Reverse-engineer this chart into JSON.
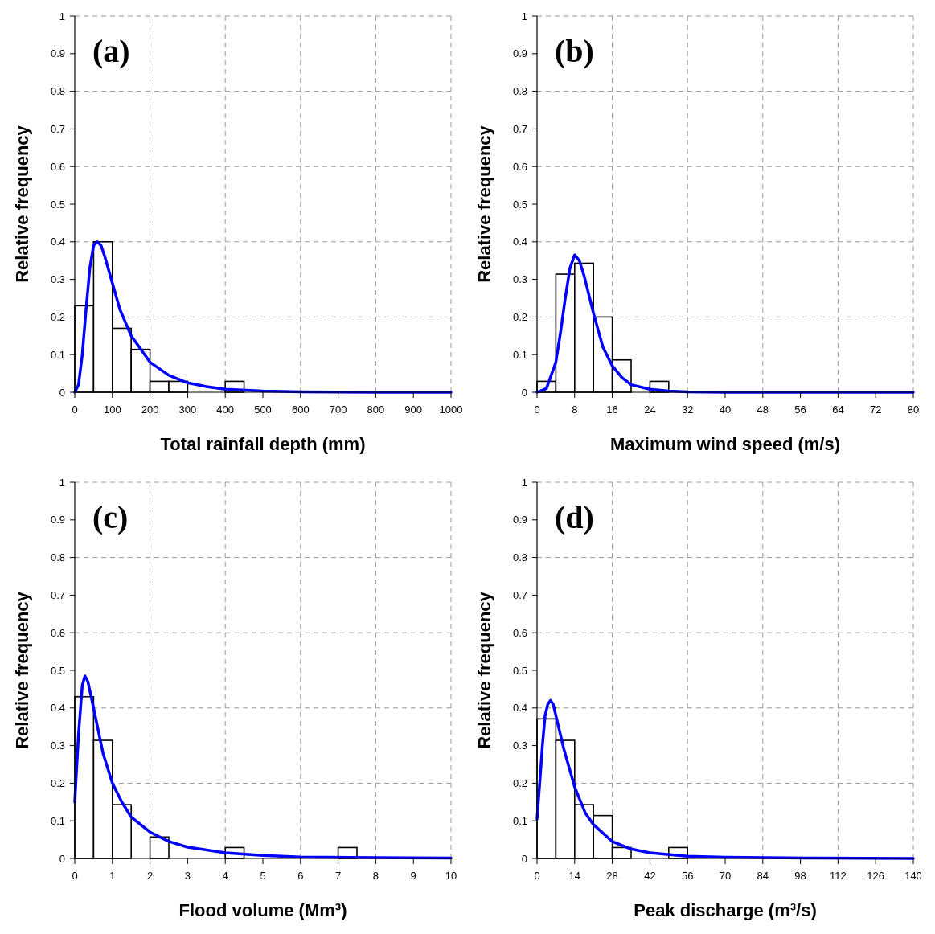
{
  "chart_data": [
    {
      "type": "histogram",
      "title": "(a)",
      "xlabel": "Total rainfall depth (mm)",
      "ylabel": "Relative frequency",
      "color": "#ffffff",
      "grid": true,
      "bins": [
        0,
        50,
        100,
        150,
        200,
        250,
        300,
        350,
        400,
        450
      ],
      "values": [
        0.23,
        0.4,
        0.17,
        0.114,
        0.029,
        0.029,
        0,
        0,
        0.029
      ],
      "series": [
        {
          "type": "line",
          "color": "#0000ff",
          "x": [
            0,
            10,
            20,
            30,
            40,
            50,
            60,
            70,
            80,
            100,
            120,
            150,
            200,
            250,
            300,
            350,
            400,
            500,
            600,
            800,
            1000
          ],
          "values": [
            0,
            0.02,
            0.1,
            0.22,
            0.33,
            0.39,
            0.4,
            0.39,
            0.36,
            0.29,
            0.22,
            0.15,
            0.08,
            0.045,
            0.025,
            0.015,
            0.008,
            0.003,
            0.001,
            0,
            0
          ]
        }
      ],
      "xlim": [
        0,
        1000
      ],
      "xticks": [
        0,
        100,
        200,
        300,
        400,
        500,
        600,
        700,
        800,
        900,
        1000
      ],
      "ylim": [
        0,
        1
      ],
      "yticks": [
        0,
        0.1,
        0.2,
        0.3,
        0.4,
        0.5,
        0.6,
        0.7,
        0.8,
        0.9,
        1
      ]
    },
    {
      "type": "histogram",
      "title": "(b)",
      "xlabel": "Maximum wind speed (m/s)",
      "ylabel": "Relative frequency",
      "color": "#ffffff",
      "grid": true,
      "bins": [
        0,
        4,
        8,
        12,
        16,
        20,
        24,
        28
      ],
      "values": [
        0.029,
        0.314,
        0.343,
        0.2,
        0.086,
        0,
        0.029
      ],
      "series": [
        {
          "type": "line",
          "color": "#0000ff",
          "x": [
            0,
            2,
            4,
            5,
            6,
            7,
            8,
            9,
            10,
            12,
            14,
            16,
            18,
            20,
            24,
            28,
            32,
            40,
            80
          ],
          "values": [
            0,
            0.01,
            0.08,
            0.16,
            0.25,
            0.33,
            0.365,
            0.35,
            0.31,
            0.21,
            0.12,
            0.07,
            0.04,
            0.02,
            0.008,
            0.003,
            0.001,
            0,
            0
          ]
        }
      ],
      "xlim": [
        0,
        80
      ],
      "xticks": [
        0,
        8,
        16,
        24,
        32,
        40,
        48,
        56,
        64,
        72,
        80
      ],
      "ylim": [
        0,
        1
      ],
      "yticks": [
        0,
        0.1,
        0.2,
        0.3,
        0.4,
        0.5,
        0.6,
        0.7,
        0.8,
        0.9,
        1
      ]
    },
    {
      "type": "histogram",
      "title": "(c)",
      "xlabel": "Flood volume (Mm³)",
      "ylabel": "Relative frequency",
      "color": "#ffffff",
      "grid": true,
      "bins": [
        0,
        0.5,
        1,
        1.5,
        2,
        2.5,
        3,
        3.5,
        4,
        4.5,
        5,
        5.5,
        6,
        6.5,
        7,
        7.5
      ],
      "values": [
        0.43,
        0.314,
        0.143,
        0,
        0.057,
        0,
        0,
        0,
        0.029,
        0,
        0,
        0,
        0,
        0,
        0.029
      ],
      "series": [
        {
          "type": "line",
          "color": "#0000ff",
          "x": [
            0,
            0.1,
            0.2,
            0.27,
            0.35,
            0.5,
            0.75,
            1,
            1.25,
            1.5,
            2,
            2.5,
            3,
            4,
            5,
            6,
            8,
            10
          ],
          "values": [
            0.15,
            0.33,
            0.46,
            0.485,
            0.47,
            0.4,
            0.28,
            0.2,
            0.15,
            0.11,
            0.07,
            0.045,
            0.03,
            0.015,
            0.008,
            0.004,
            0.002,
            0.001
          ]
        }
      ],
      "xlim": [
        0,
        10
      ],
      "xticks": [
        0,
        1,
        2,
        3,
        4,
        5,
        6,
        7,
        8,
        9,
        10
      ],
      "ylim": [
        0,
        1
      ],
      "yticks": [
        0,
        0.1,
        0.2,
        0.3,
        0.4,
        0.5,
        0.6,
        0.7,
        0.8,
        0.9,
        1
      ]
    },
    {
      "type": "histogram",
      "title": "(d)",
      "xlabel": "Peak discharge (m³/s)",
      "ylabel": "Relative frequency",
      "color": "#ffffff",
      "grid": true,
      "bins": [
        0,
        7,
        14,
        21,
        28,
        35,
        42,
        49,
        56
      ],
      "values": [
        0.371,
        0.314,
        0.143,
        0.114,
        0.029,
        0,
        0,
        0.029
      ],
      "series": [
        {
          "type": "line",
          "color": "#0000ff",
          "x": [
            0,
            1,
            2,
            3,
            4,
            5,
            6,
            7,
            10,
            14,
            18,
            21,
            28,
            35,
            42,
            56,
            70,
            100,
            140
          ],
          "values": [
            0.105,
            0.2,
            0.3,
            0.38,
            0.41,
            0.42,
            0.41,
            0.38,
            0.29,
            0.19,
            0.12,
            0.09,
            0.045,
            0.025,
            0.015,
            0.006,
            0.003,
            0.001,
            0
          ]
        }
      ],
      "xlim": [
        0,
        140
      ],
      "xticks": [
        0,
        14,
        28,
        42,
        56,
        70,
        84,
        98,
        112,
        126,
        140
      ],
      "ylim": [
        0,
        1
      ],
      "yticks": [
        0,
        0.1,
        0.2,
        0.3,
        0.4,
        0.5,
        0.6,
        0.7,
        0.8,
        0.9,
        1
      ]
    }
  ]
}
